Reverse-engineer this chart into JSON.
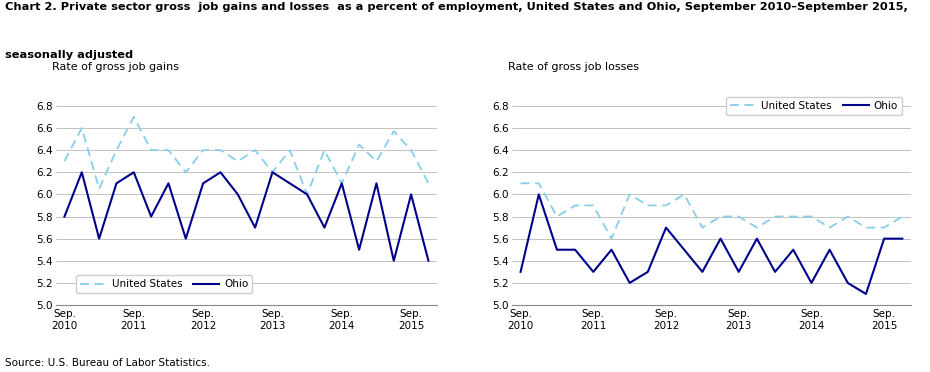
{
  "title_line1": "Chart 2. Private sector gross  job gains and losses  as a percent of employment, United States and Ohio, September 2010–September 2015,",
  "title_line2": "seasonally adjusted",
  "title_fontsize": 8.5,
  "left_ylabel": "Rate of gross job gains",
  "right_ylabel": "Rate of gross job losses",
  "ylim": [
    5.0,
    6.95
  ],
  "yticks": [
    5.0,
    5.2,
    5.4,
    5.6,
    5.8,
    6.0,
    6.2,
    6.4,
    6.6,
    6.8
  ],
  "x_labels": [
    "Sep.\n2010",
    "Sep.\n2011",
    "Sep.\n2012",
    "Sep.\n2013",
    "Sep.\n2014",
    "Sep.\n2015"
  ],
  "x_positions": [
    0,
    4,
    8,
    12,
    16,
    20
  ],
  "n_points": 22,
  "source": "Source: U.S. Bureau of Labor Statistics.",
  "us_color": "#87CEEB",
  "ohio_color": "#00008B",
  "gains_us": [
    6.3,
    6.6,
    6.05,
    6.4,
    6.7,
    6.4,
    6.4,
    6.2,
    6.4,
    6.4,
    6.3,
    6.4,
    6.2,
    6.4,
    6.0,
    6.4,
    6.1,
    6.45,
    6.3,
    6.57,
    6.4,
    6.1
  ],
  "gains_ohio": [
    5.8,
    6.2,
    5.6,
    6.1,
    6.2,
    5.8,
    6.1,
    5.6,
    6.1,
    6.2,
    6.0,
    5.7,
    6.2,
    6.1,
    6.0,
    5.7,
    6.1,
    5.5,
    6.1,
    5.4,
    6.0,
    5.4
  ],
  "losses_us": [
    6.1,
    6.1,
    5.8,
    5.9,
    5.9,
    5.6,
    6.0,
    5.9,
    5.9,
    6.0,
    5.7,
    5.8,
    5.8,
    5.7,
    5.8,
    5.8,
    5.8,
    5.7,
    5.8,
    5.7,
    5.7,
    5.8
  ],
  "losses_ohio": [
    5.3,
    6.0,
    5.5,
    5.5,
    5.3,
    5.5,
    5.2,
    5.3,
    5.7,
    5.5,
    5.3,
    5.6,
    5.3,
    5.6,
    5.3,
    5.5,
    5.2,
    5.5,
    5.2,
    5.1,
    5.6,
    5.6
  ]
}
